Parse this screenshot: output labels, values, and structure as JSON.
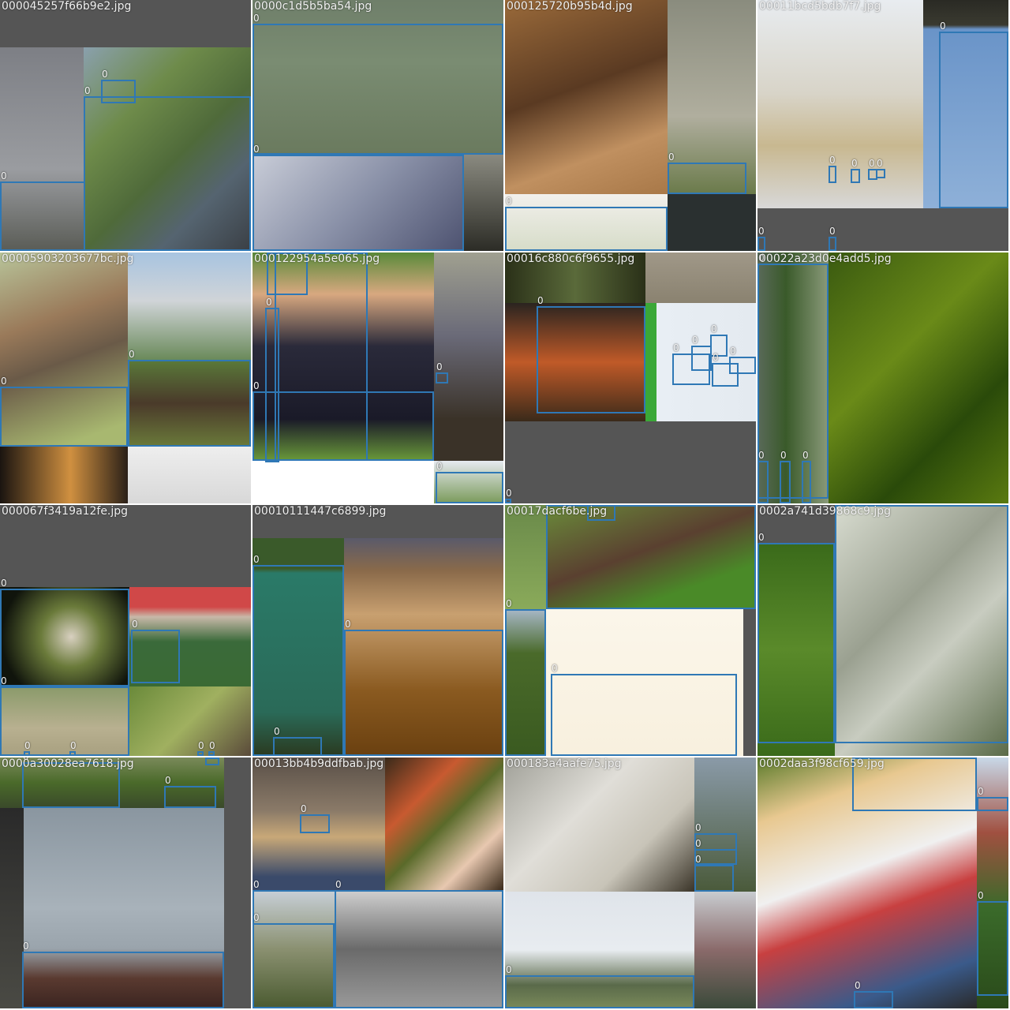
{
  "mosaic": {
    "box_color": "#2f78b5",
    "tiles": [
      {
        "filename": "000045257f66b9e2.jpg",
        "box_label": "0"
      },
      {
        "filename": "0000c1d5b5ba54.jpg",
        "box_label": "0"
      },
      {
        "filename": "000125720b95b4d.jpg",
        "box_label": "0"
      },
      {
        "filename": "00011bcd5bdb7f7.jpg",
        "box_label": "0"
      },
      {
        "filename": "00005903203677bc.jpg",
        "box_label": "0"
      },
      {
        "filename": "000122954a5e065.jpg",
        "box_label": "0"
      },
      {
        "filename": "00016c880c6f9655.jpg",
        "box_label": "0"
      },
      {
        "filename": "00022a23d0e4add5.jpg",
        "box_label": "0"
      },
      {
        "filename": "000067f3419a12fe.jpg",
        "box_label": "0"
      },
      {
        "filename": "00010111447c6899.jpg",
        "box_label": "0"
      },
      {
        "filename": "00017dacf6be.jpg",
        "box_label": "0"
      },
      {
        "filename": "0002a741d39868c9.jpg",
        "box_label": "0"
      },
      {
        "filename": "0000a30028ea7618.jpg",
        "box_label": "0"
      },
      {
        "filename": "00013bb4b9ddfbab.jpg",
        "box_label": "0"
      },
      {
        "filename": "000183a4aafe75.jpg",
        "box_label": "0"
      },
      {
        "filename": "0002daa3f98cf659.jpg",
        "box_label": "0"
      }
    ]
  }
}
